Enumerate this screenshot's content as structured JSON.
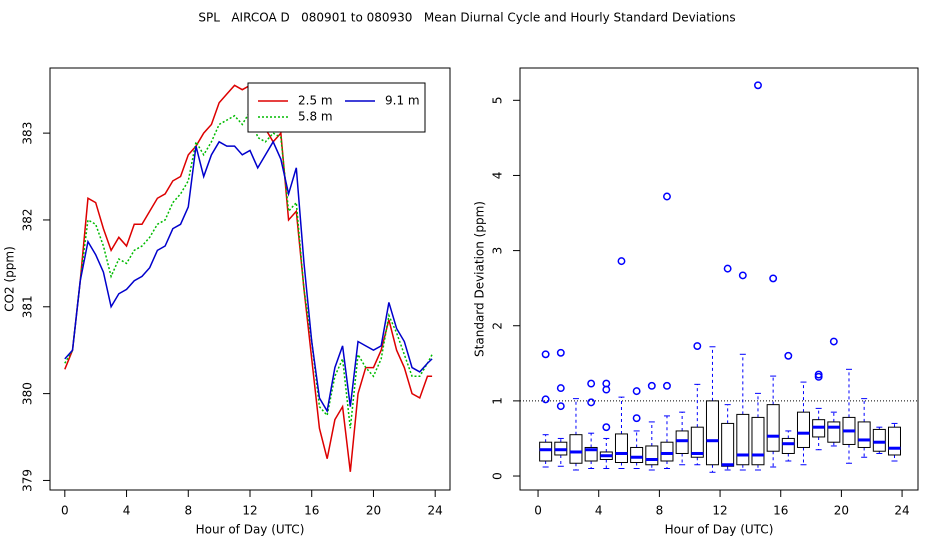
{
  "title": "SPL   AIRCOA D   080901 to 080930   Mean Diurnal Cycle and Hourly Standard Deviations",
  "chart_data": [
    {
      "type": "line",
      "xlabel": "Hour of Day (UTC)",
      "ylabel": "CO2 (ppm)",
      "x": [
        0,
        0.5,
        1,
        1.5,
        2,
        2.5,
        3,
        3.5,
        4,
        4.5,
        5,
        5.5,
        6,
        6.5,
        7,
        7.5,
        8,
        8.5,
        9,
        9.5,
        10,
        10.5,
        11,
        11.5,
        12,
        12.5,
        13,
        13.5,
        14,
        14.5,
        15,
        15.5,
        16,
        16.5,
        17,
        17.5,
        18,
        18.5,
        19,
        19.5,
        20,
        20.5,
        21,
        21.5,
        22,
        22.5,
        23,
        23.5,
        23.8
      ],
      "series": [
        {
          "name": "2.5 m",
          "color": "#dd0000",
          "linestyle": "solid",
          "values": [
            380.28,
            380.5,
            381.3,
            382.25,
            382.2,
            381.9,
            381.65,
            381.8,
            381.7,
            381.95,
            381.95,
            382.1,
            382.25,
            382.3,
            382.45,
            382.5,
            382.75,
            382.85,
            383.0,
            383.1,
            383.35,
            383.45,
            383.55,
            383.5,
            383.55,
            383.2,
            383.05,
            382.9,
            383.0,
            382.0,
            382.1,
            381.2,
            380.4,
            379.6,
            379.25,
            379.7,
            379.85,
            379.1,
            380.0,
            380.3,
            380.3,
            380.5,
            380.85,
            380.5,
            380.3,
            380.0,
            379.95,
            380.2,
            380.2
          ]
        },
        {
          "name": "5.8 m",
          "color": "#00bb00",
          "linestyle": "dotted",
          "values": [
            380.35,
            380.5,
            381.3,
            382.0,
            381.95,
            381.7,
            381.35,
            381.55,
            381.5,
            381.65,
            381.7,
            381.8,
            381.95,
            382.0,
            382.2,
            382.3,
            382.45,
            382.9,
            382.75,
            382.9,
            383.1,
            383.15,
            383.2,
            383.1,
            383.25,
            382.95,
            382.9,
            383.0,
            382.95,
            382.1,
            382.2,
            381.2,
            380.6,
            379.85,
            379.75,
            380.2,
            380.4,
            379.6,
            380.45,
            380.3,
            380.2,
            380.4,
            380.9,
            380.7,
            380.45,
            380.2,
            380.2,
            380.35,
            380.45
          ]
        },
        {
          "name": "9.1 m",
          "color": "#0000cc",
          "linestyle": "solid",
          "values": [
            380.4,
            380.5,
            381.3,
            381.75,
            381.6,
            381.4,
            381.0,
            381.15,
            381.2,
            381.3,
            381.35,
            381.45,
            381.65,
            381.7,
            381.9,
            381.95,
            382.15,
            382.85,
            382.5,
            382.75,
            382.9,
            382.85,
            382.85,
            382.75,
            382.8,
            382.6,
            382.75,
            382.9,
            382.7,
            382.3,
            382.6,
            381.5,
            380.6,
            379.95,
            379.8,
            380.3,
            380.55,
            379.85,
            380.6,
            380.55,
            380.5,
            380.55,
            381.05,
            380.75,
            380.6,
            380.3,
            380.25,
            380.35,
            380.4
          ]
        }
      ],
      "xlim": [
        -0.96,
        24.96
      ],
      "xticks": [
        0,
        4,
        8,
        12,
        16,
        20,
        24
      ],
      "ylim": [
        378.89,
        383.75
      ],
      "yticks": [
        379,
        380,
        381,
        382,
        383
      ],
      "legend": "top-right"
    },
    {
      "type": "box",
      "xlabel": "Hour of Day (UTC)",
      "ylabel": "Standard Deviation (ppm)",
      "color": "#0000ff",
      "box_color": "#000000",
      "hline": 1,
      "boxes": [
        {
          "x": 0.5,
          "whisker_low": 0.12,
          "q1": 0.2,
          "median": 0.35,
          "q3": 0.45,
          "whisker_high": 0.55,
          "outliers": [
            1.62,
            1.02
          ]
        },
        {
          "x": 1.5,
          "whisker_low": 0.13,
          "q1": 0.28,
          "median": 0.35,
          "q3": 0.45,
          "whisker_high": 0.5,
          "outliers": [
            1.64,
            1.17,
            0.93
          ]
        },
        {
          "x": 2.5,
          "whisker_low": 0.08,
          "q1": 0.17,
          "median": 0.32,
          "q3": 0.55,
          "whisker_high": 1.03,
          "outliers": []
        },
        {
          "x": 3.5,
          "whisker_low": 0.1,
          "q1": 0.2,
          "median": 0.35,
          "q3": 0.38,
          "whisker_high": 0.57,
          "outliers": [
            1.23,
            0.98
          ]
        },
        {
          "x": 4.5,
          "whisker_low": 0.1,
          "q1": 0.22,
          "median": 0.27,
          "q3": 0.32,
          "whisker_high": 0.5,
          "outliers": [
            1.23,
            1.15,
            0.65
          ]
        },
        {
          "x": 5.5,
          "whisker_low": 0.1,
          "q1": 0.18,
          "median": 0.3,
          "q3": 0.56,
          "whisker_high": 1.05,
          "outliers": [
            2.86
          ]
        },
        {
          "x": 6.5,
          "whisker_low": 0.1,
          "q1": 0.18,
          "median": 0.25,
          "q3": 0.38,
          "whisker_high": 0.6,
          "outliers": [
            1.13,
            0.77
          ]
        },
        {
          "x": 7.5,
          "whisker_low": 0.08,
          "q1": 0.15,
          "median": 0.22,
          "q3": 0.4,
          "whisker_high": 0.72,
          "outliers": [
            1.2
          ]
        },
        {
          "x": 8.5,
          "whisker_low": 0.1,
          "q1": 0.2,
          "median": 0.3,
          "q3": 0.45,
          "whisker_high": 0.8,
          "outliers": [
            3.72,
            1.2
          ]
        },
        {
          "x": 9.5,
          "whisker_low": 0.15,
          "q1": 0.3,
          "median": 0.47,
          "q3": 0.6,
          "whisker_high": 0.85,
          "outliers": []
        },
        {
          "x": 10.5,
          "whisker_low": 0.15,
          "q1": 0.25,
          "median": 0.3,
          "q3": 0.65,
          "whisker_high": 1.22,
          "outliers": [
            1.73
          ]
        },
        {
          "x": 11.5,
          "whisker_low": 0.05,
          "q1": 0.15,
          "median": 0.47,
          "q3": 1.0,
          "whisker_high": 1.72,
          "outliers": []
        },
        {
          "x": 12.5,
          "whisker_low": 0.08,
          "q1": 0.13,
          "median": 0.15,
          "q3": 0.7,
          "whisker_high": 0.95,
          "outliers": [
            2.76
          ]
        },
        {
          "x": 13.5,
          "whisker_low": 0.08,
          "q1": 0.15,
          "median": 0.28,
          "q3": 0.82,
          "whisker_high": 1.62,
          "outliers": [
            2.67
          ]
        },
        {
          "x": 14.5,
          "whisker_low": 0.08,
          "q1": 0.15,
          "median": 0.28,
          "q3": 0.78,
          "whisker_high": 1.1,
          "outliers": [
            5.2
          ]
        },
        {
          "x": 15.5,
          "whisker_low": 0.12,
          "q1": 0.33,
          "median": 0.53,
          "q3": 0.95,
          "whisker_high": 1.33,
          "outliers": [
            2.63
          ]
        },
        {
          "x": 16.5,
          "whisker_low": 0.2,
          "q1": 0.3,
          "median": 0.43,
          "q3": 0.5,
          "whisker_high": 0.6,
          "outliers": [
            1.6
          ]
        },
        {
          "x": 17.5,
          "whisker_low": 0.15,
          "q1": 0.38,
          "median": 0.57,
          "q3": 0.85,
          "whisker_high": 1.25,
          "outliers": []
        },
        {
          "x": 18.5,
          "whisker_low": 0.35,
          "q1": 0.52,
          "median": 0.65,
          "q3": 0.75,
          "whisker_high": 0.9,
          "outliers": [
            1.35,
            1.32
          ]
        },
        {
          "x": 19.5,
          "whisker_low": 0.4,
          "q1": 0.45,
          "median": 0.65,
          "q3": 0.72,
          "whisker_high": 0.85,
          "outliers": [
            1.79
          ]
        },
        {
          "x": 20.5,
          "whisker_low": 0.17,
          "q1": 0.42,
          "median": 0.6,
          "q3": 0.78,
          "whisker_high": 1.42,
          "outliers": []
        },
        {
          "x": 21.5,
          "whisker_low": 0.25,
          "q1": 0.38,
          "median": 0.48,
          "q3": 0.72,
          "whisker_high": 1.03,
          "outliers": []
        },
        {
          "x": 22.5,
          "whisker_low": 0.3,
          "q1": 0.33,
          "median": 0.45,
          "q3": 0.62,
          "whisker_high": 0.65,
          "outliers": []
        },
        {
          "x": 23.5,
          "whisker_low": 0.2,
          "q1": 0.28,
          "median": 0.37,
          "q3": 0.65,
          "whisker_high": 0.7,
          "outliers": []
        }
      ],
      "xlim": [
        -1.19,
        25.05
      ],
      "xticks": [
        0,
        4,
        8,
        12,
        16,
        20,
        24
      ],
      "ylim": [
        -0.186,
        5.43
      ],
      "yticks": [
        0,
        1,
        2,
        3,
        4,
        5
      ]
    }
  ]
}
